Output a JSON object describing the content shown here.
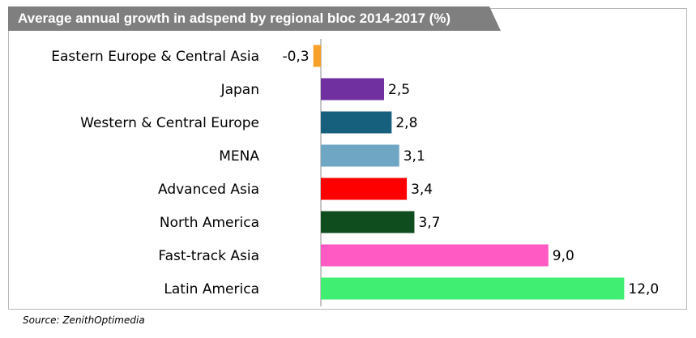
{
  "chart_data": {
    "type": "bar",
    "orientation": "horizontal",
    "title": "Average annual growth in adspend by regional bloc 2014-2017 (%)",
    "categories": [
      "Eastern Europe & Central Asia",
      "Japan",
      "Western & Central Europe",
      "MENA",
      "Advanced Asia",
      "North America",
      "Fast-track Asia",
      "Latin America"
    ],
    "values": [
      -0.3,
      2.5,
      2.8,
      3.1,
      3.4,
      3.7,
      9.0,
      12.0
    ],
    "value_labels": [
      "-0,3",
      "2,5",
      "2,8",
      "3,1",
      "3,4",
      "3,7",
      "9,0",
      "12,0"
    ],
    "colors": [
      "#f7a12a",
      "#7030a0",
      "#17607d",
      "#6ea6c4",
      "#ff0000",
      "#0f4d1f",
      "#ff5ac4",
      "#40ee72"
    ],
    "xlabel": "",
    "ylabel": "",
    "xlim": [
      -0.3,
      12.0
    ],
    "grid": false,
    "legend": "none",
    "source": "Source: ZenithOptimedia"
  }
}
